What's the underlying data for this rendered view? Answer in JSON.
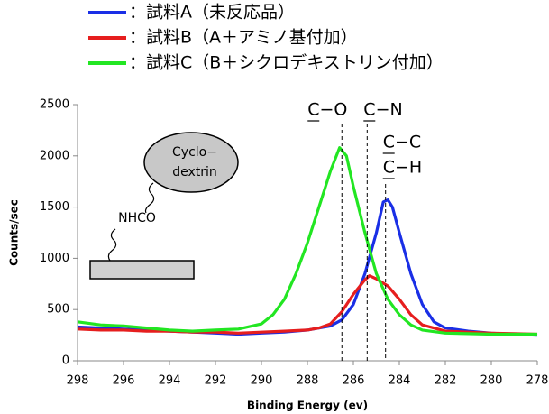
{
  "chart_data": {
    "type": "line",
    "xlabel": "Binding Energy (ev)",
    "ylabel": "Counts/sec",
    "xlim": [
      298,
      278
    ],
    "ylim": [
      0,
      2500
    ],
    "xticks": [
      298,
      296,
      294,
      292,
      290,
      288,
      286,
      284,
      282,
      280,
      278
    ],
    "yticks": [
      0,
      500,
      1000,
      1500,
      2000,
      2500
    ],
    "series": [
      {
        "name": "：試料A（未反応品）",
        "color": "#1a2fe6",
        "x": [
          298,
          297,
          296,
          295,
          294,
          293,
          292,
          291,
          290,
          289,
          288,
          287,
          286.5,
          286,
          285.5,
          285,
          284.7,
          284.5,
          284.3,
          284,
          283.5,
          283,
          282.5,
          282,
          281,
          280,
          279,
          278
        ],
        "values": [
          330,
          320,
          310,
          300,
          290,
          280,
          270,
          260,
          270,
          280,
          300,
          340,
          400,
          550,
          850,
          1250,
          1550,
          1570,
          1500,
          1250,
          850,
          550,
          380,
          320,
          290,
          270,
          260,
          250
        ]
      },
      {
        "name": "：試料B（A＋アミノ基付加）",
        "color": "#e61e1e",
        "x": [
          298,
          297,
          296,
          295,
          294,
          293,
          292,
          291,
          290,
          289,
          288,
          287.5,
          287,
          286.5,
          286,
          285.5,
          285.3,
          285,
          284.5,
          284,
          283.5,
          283,
          282,
          281,
          280,
          279,
          278
        ],
        "values": [
          310,
          300,
          300,
          290,
          290,
          280,
          280,
          270,
          280,
          290,
          300,
          320,
          360,
          480,
          650,
          790,
          830,
          800,
          730,
          600,
          450,
          350,
          290,
          280,
          270,
          265,
          260
        ]
      },
      {
        "name": "：試料C（B＋シクロデキストリン付加）",
        "color": "#22e622",
        "x": [
          298,
          297,
          296,
          295,
          294,
          293,
          292,
          291,
          290,
          289.5,
          289,
          288.5,
          288,
          287.5,
          287,
          286.6,
          286.3,
          286,
          285.5,
          285,
          284.5,
          284,
          283.5,
          283,
          282,
          281,
          280,
          279,
          278
        ],
        "values": [
          380,
          350,
          340,
          320,
          300,
          290,
          300,
          310,
          360,
          450,
          600,
          850,
          1150,
          1500,
          1850,
          2080,
          2000,
          1700,
          1250,
          850,
          600,
          450,
          350,
          300,
          270,
          265,
          260,
          260,
          260
        ]
      }
    ],
    "markers": [
      {
        "x": 286.5,
        "labels": [
          "C−O"
        ]
      },
      {
        "x": 285.4,
        "labels": [
          "C−N"
        ]
      },
      {
        "x": 284.6,
        "labels": [
          "C−C",
          "C−H"
        ]
      }
    ],
    "inset": {
      "molecule": [
        "Cyclo−",
        "dextrin"
      ],
      "linker": "NHCO"
    }
  }
}
